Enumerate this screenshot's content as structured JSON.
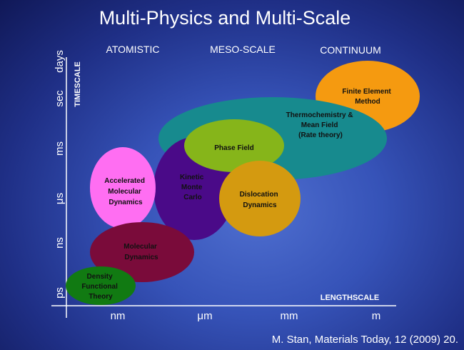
{
  "title": "Multi-Physics and Multi-Scale",
  "regions": [
    "ATOMISTIC",
    "MESO-SCALE",
    "CONTINUUM"
  ],
  "y_axis": {
    "title": "TIMESCALE",
    "ticks": [
      "ps",
      "ns",
      "μs",
      "ms",
      "sec",
      "days"
    ]
  },
  "x_axis": {
    "title": "LENGTHSCALE",
    "ticks": [
      "nm",
      "μm",
      "mm",
      "m"
    ]
  },
  "methods": [
    {
      "id": "finite-element",
      "label": [
        "Finite Element",
        "Method"
      ],
      "color": "#f59a10"
    },
    {
      "id": "thermochemistry",
      "label": [
        "Thermochemistry &",
        "Mean Field",
        "(Rate theory)"
      ],
      "color": "#178a8e"
    },
    {
      "id": "phase-field",
      "label": [
        "Phase Field"
      ],
      "color": "#86b51a"
    },
    {
      "id": "kinetic-monte-carlo",
      "label": [
        "Kinetic",
        "Monte",
        "Carlo"
      ],
      "color": "#4a0a88"
    },
    {
      "id": "dislocation-dynamics",
      "label": [
        "Dislocation",
        "Dynamics"
      ],
      "color": "#d49a10"
    },
    {
      "id": "accelerated-md",
      "label": [
        "Accelerated",
        "Molecular",
        "Dynamics"
      ],
      "color": "#ff6ef2"
    },
    {
      "id": "molecular-dynamics",
      "label": [
        "Molecular",
        "Dynamics"
      ],
      "color": "#7a0b3a"
    },
    {
      "id": "dft",
      "label": [
        "Density",
        "Functional",
        "Theory"
      ],
      "color": "#117a12"
    }
  ],
  "citation": "M. Stan, Materials Today,  12 (2009) 20."
}
